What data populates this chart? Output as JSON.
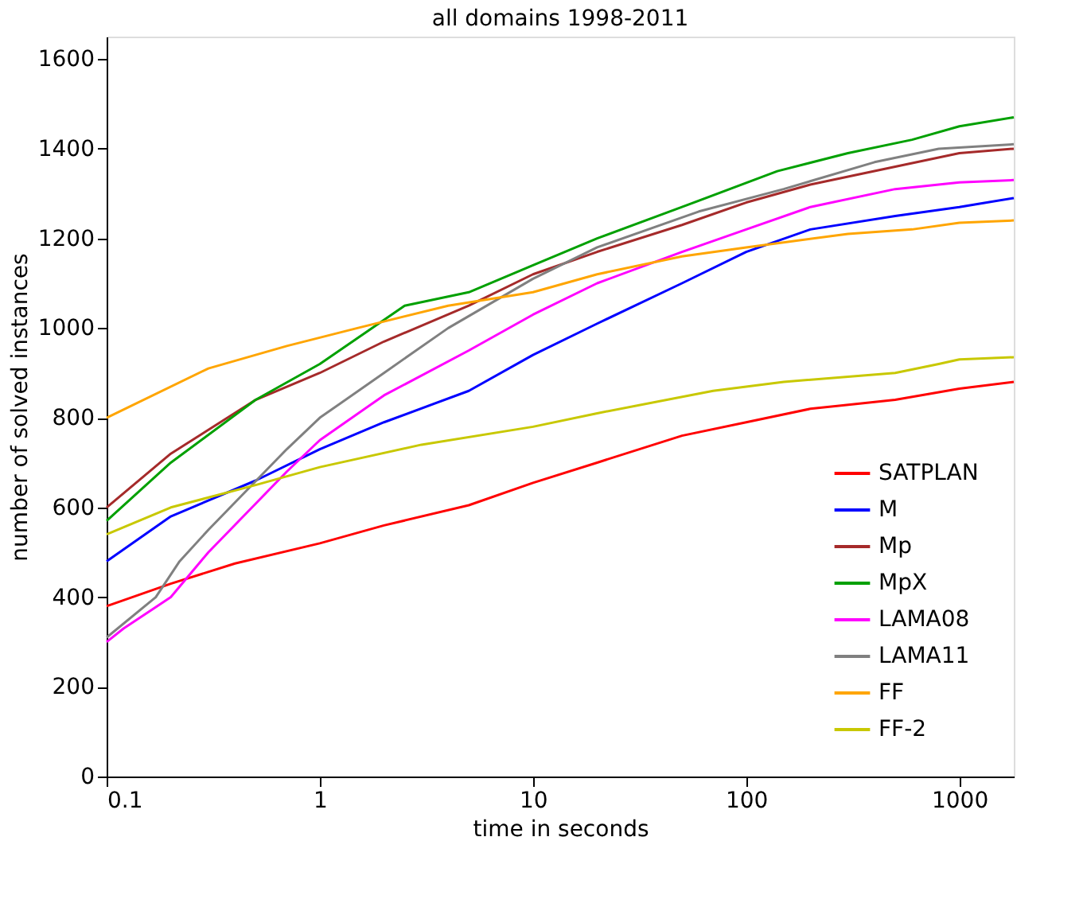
{
  "chart_data": {
    "type": "line",
    "title": "all domains 1998-2011",
    "xlabel": "time in seconds",
    "ylabel": "number of solved instances",
    "log": "x",
    "xlim": [
      0.1,
      1800
    ],
    "xticks": [
      0.1,
      1,
      10,
      100,
      1000
    ],
    "ylim": [
      0,
      1650
    ],
    "yticks": [
      0,
      200,
      400,
      600,
      800,
      1000,
      1200,
      1400,
      1600
    ],
    "grid": false,
    "legend": "bottom right",
    "marker": "none",
    "line_style": "solid",
    "series": [
      {
        "name": "SATPLAN",
        "color": "#ff0000",
        "x": [
          0.1,
          0.2,
          0.4,
          1,
          2,
          5,
          10,
          20,
          50,
          100,
          200,
          500,
          1000,
          1800
        ],
        "values": [
          380,
          430,
          475,
          520,
          560,
          605,
          655,
          700,
          760,
          790,
          820,
          840,
          865,
          880
        ]
      },
      {
        "name": "M",
        "color": "#0000ff",
        "x": [
          0.1,
          0.2,
          0.5,
          1,
          2,
          5,
          10,
          20,
          50,
          100,
          200,
          500,
          1000,
          1800
        ],
        "values": [
          480,
          580,
          660,
          730,
          790,
          860,
          940,
          1010,
          1100,
          1170,
          1220,
          1250,
          1270,
          1290
        ]
      },
      {
        "name": "Mp",
        "color": "#a52a2a",
        "x": [
          0.1,
          0.2,
          0.5,
          1,
          2,
          5,
          10,
          20,
          50,
          100,
          200,
          500,
          1000,
          1800
        ],
        "values": [
          600,
          720,
          840,
          900,
          970,
          1050,
          1120,
          1170,
          1230,
          1280,
          1320,
          1360,
          1390,
          1400
        ]
      },
      {
        "name": "MpX",
        "color": "#00a000",
        "x": [
          0.1,
          0.2,
          0.5,
          1,
          2.5,
          5,
          10,
          20,
          50,
          140,
          300,
          600,
          1000,
          1800
        ],
        "values": [
          570,
          700,
          840,
          920,
          1050,
          1080,
          1140,
          1200,
          1270,
          1350,
          1390,
          1420,
          1450,
          1470
        ]
      },
      {
        "name": "LAMA08",
        "color": "#ff00ff",
        "x": [
          0.1,
          0.12,
          0.2,
          0.3,
          0.7,
          1,
          2,
          5,
          10,
          20,
          50,
          100,
          200,
          500,
          1000,
          1800
        ],
        "values": [
          300,
          330,
          400,
          500,
          680,
          750,
          850,
          950,
          1030,
          1100,
          1170,
          1220,
          1270,
          1310,
          1325,
          1330
        ]
      },
      {
        "name": "LAMA11",
        "color": "#808080",
        "x": [
          0.1,
          0.17,
          0.22,
          0.3,
          0.7,
          1,
          2,
          4,
          10,
          20,
          60,
          150,
          400,
          800,
          1800
        ],
        "values": [
          310,
          400,
          480,
          550,
          730,
          800,
          900,
          1000,
          1110,
          1180,
          1260,
          1310,
          1370,
          1400,
          1410
        ]
      },
      {
        "name": "FF",
        "color": "#ffa500",
        "x": [
          0.1,
          0.3,
          0.7,
          1.5,
          4,
          10,
          20,
          50,
          100,
          300,
          600,
          1000,
          1800
        ],
        "values": [
          800,
          910,
          960,
          1000,
          1050,
          1080,
          1120,
          1160,
          1180,
          1210,
          1220,
          1235,
          1240
        ]
      },
      {
        "name": "FF-2",
        "color": "#c8c800",
        "x": [
          0.1,
          0.2,
          0.5,
          1,
          3,
          10,
          20,
          70,
          150,
          500,
          800,
          1000,
          1800
        ],
        "values": [
          540,
          600,
          650,
          690,
          740,
          780,
          810,
          860,
          880,
          900,
          920,
          930,
          935
        ]
      }
    ]
  }
}
